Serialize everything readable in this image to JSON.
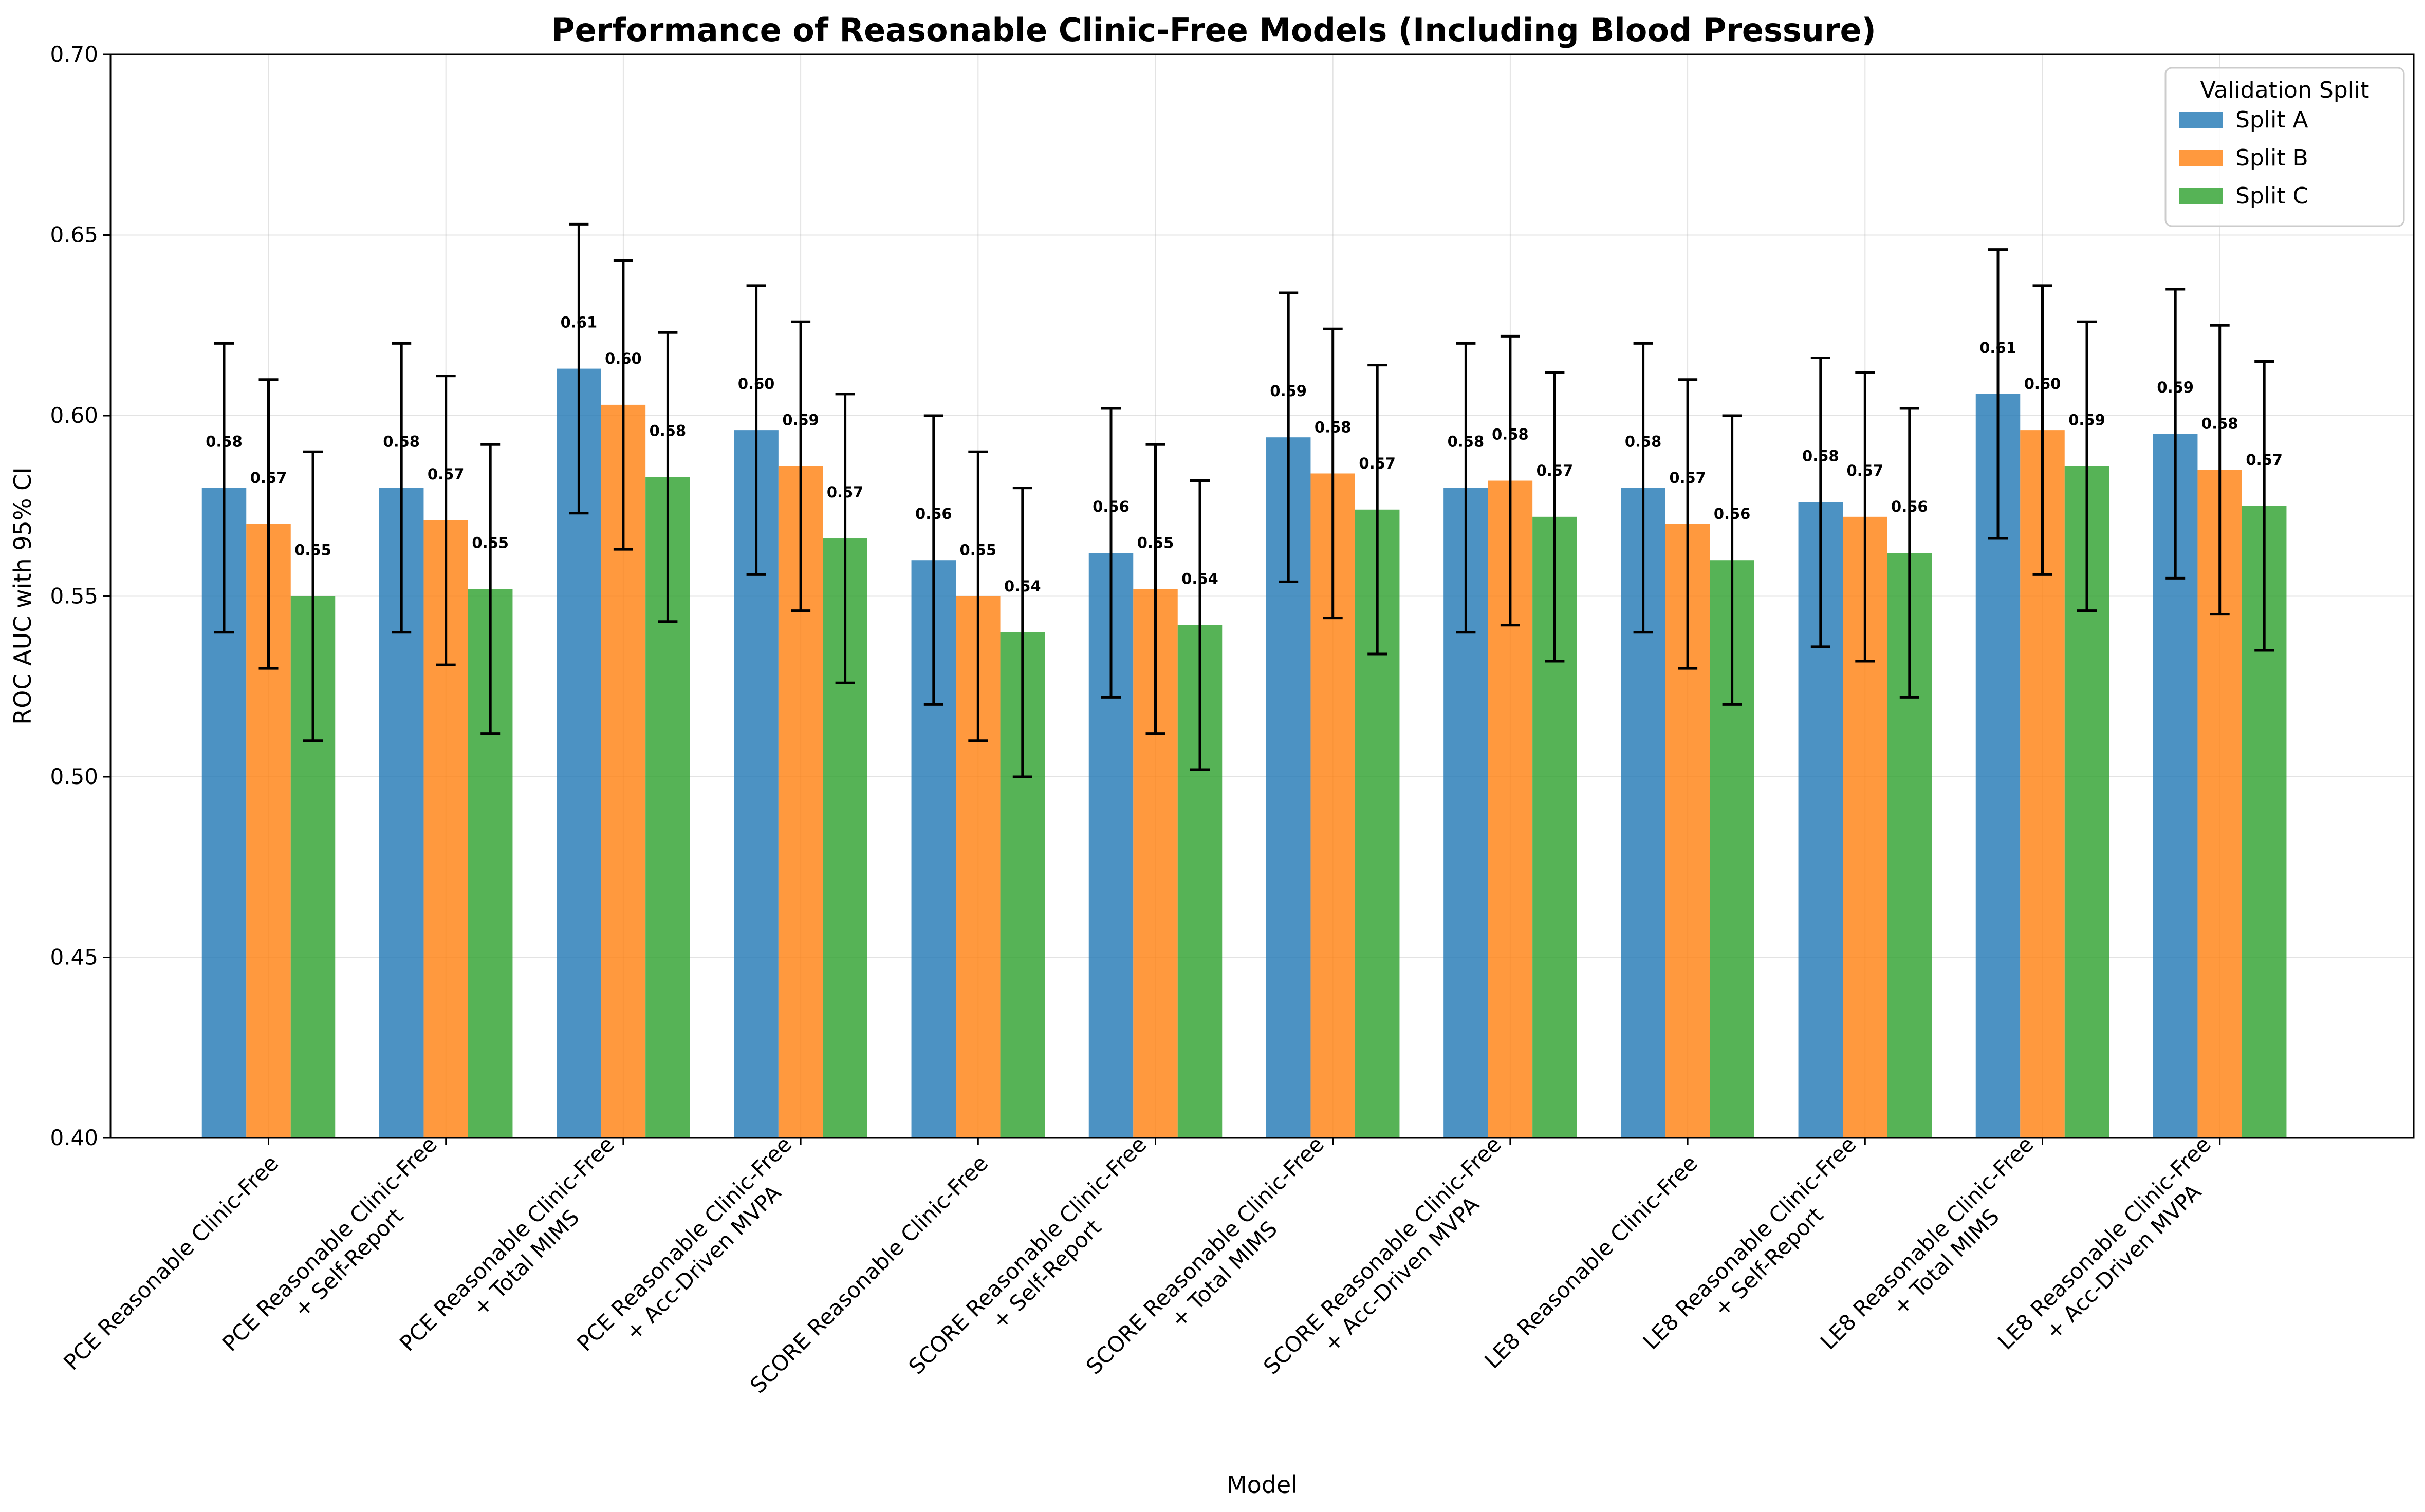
{
  "chart_data": {
    "type": "bar",
    "title": "Performance of Reasonable Clinic-Free Models (Including Blood Pressure)",
    "xlabel": "Model",
    "ylabel": "ROC AUC with 95% CI",
    "ylim": [
      0.4,
      0.7
    ],
    "yticks": [
      "0.40",
      "0.45",
      "0.50",
      "0.55",
      "0.60",
      "0.65",
      "0.70"
    ],
    "grid": true,
    "legend": {
      "title": "Validation Split",
      "placement": "top-right"
    },
    "categories": [
      [
        "PCE Reasonable Clinic-Free"
      ],
      [
        "PCE Reasonable Clinic-Free",
        "+ Self-Report"
      ],
      [
        "PCE Reasonable Clinic-Free",
        "+ Total MIMS"
      ],
      [
        "PCE Reasonable Clinic-Free",
        "+ Acc-Driven MVPA"
      ],
      [
        "SCORE Reasonable Clinic-Free"
      ],
      [
        "SCORE Reasonable Clinic-Free",
        "+ Self-Report"
      ],
      [
        "SCORE Reasonable Clinic-Free",
        "+ Total MIMS"
      ],
      [
        "SCORE Reasonable Clinic-Free",
        "+ Acc-Driven MVPA"
      ],
      [
        "LE8 Reasonable Clinic-Free"
      ],
      [
        "LE8 Reasonable Clinic-Free",
        "+ Self-Report"
      ],
      [
        "LE8 Reasonable Clinic-Free",
        "+ Total MIMS"
      ],
      [
        "LE8 Reasonable Clinic-Free",
        "+ Acc-Driven MVPA"
      ]
    ],
    "series": [
      {
        "name": "Split A",
        "color": "#1f77b4",
        "values": [
          0.58,
          0.58,
          0.613,
          0.596,
          0.56,
          0.562,
          0.594,
          0.58,
          0.58,
          0.576,
          0.606,
          0.595
        ],
        "ci_low": [
          0.54,
          0.54,
          0.573,
          0.556,
          0.52,
          0.522,
          0.554,
          0.54,
          0.54,
          0.536,
          0.566,
          0.555
        ],
        "ci_high": [
          0.62,
          0.62,
          0.653,
          0.636,
          0.6,
          0.602,
          0.634,
          0.62,
          0.62,
          0.616,
          0.646,
          0.635
        ],
        "labels": [
          "0.58",
          "0.58",
          "0.61",
          "0.60",
          "0.56",
          "0.56",
          "0.59",
          "0.58",
          "0.58",
          "0.58",
          "0.61",
          "0.59"
        ]
      },
      {
        "name": "Split B",
        "color": "#ff7f0e",
        "values": [
          0.57,
          0.571,
          0.603,
          0.586,
          0.55,
          0.552,
          0.584,
          0.582,
          0.57,
          0.572,
          0.596,
          0.585
        ],
        "ci_low": [
          0.53,
          0.531,
          0.563,
          0.546,
          0.51,
          0.512,
          0.544,
          0.542,
          0.53,
          0.532,
          0.556,
          0.545
        ],
        "ci_high": [
          0.61,
          0.611,
          0.643,
          0.626,
          0.59,
          0.592,
          0.624,
          0.622,
          0.61,
          0.612,
          0.636,
          0.625
        ],
        "labels": [
          "0.57",
          "0.57",
          "0.60",
          "0.59",
          "0.55",
          "0.55",
          "0.58",
          "0.58",
          "0.57",
          "0.57",
          "0.60",
          "0.58"
        ]
      },
      {
        "name": "Split C",
        "color": "#2ca02c",
        "values": [
          0.55,
          0.552,
          0.583,
          0.566,
          0.54,
          0.542,
          0.574,
          0.572,
          0.56,
          0.562,
          0.586,
          0.575
        ],
        "ci_low": [
          0.51,
          0.512,
          0.543,
          0.526,
          0.5,
          0.502,
          0.534,
          0.532,
          0.52,
          0.522,
          0.546,
          0.535
        ],
        "ci_high": [
          0.59,
          0.592,
          0.623,
          0.606,
          0.58,
          0.582,
          0.614,
          0.612,
          0.6,
          0.602,
          0.626,
          0.615
        ],
        "labels": [
          "0.55",
          "0.55",
          "0.58",
          "0.57",
          "0.54",
          "0.54",
          "0.57",
          "0.57",
          "0.56",
          "0.56",
          "0.59",
          "0.57"
        ]
      }
    ]
  }
}
